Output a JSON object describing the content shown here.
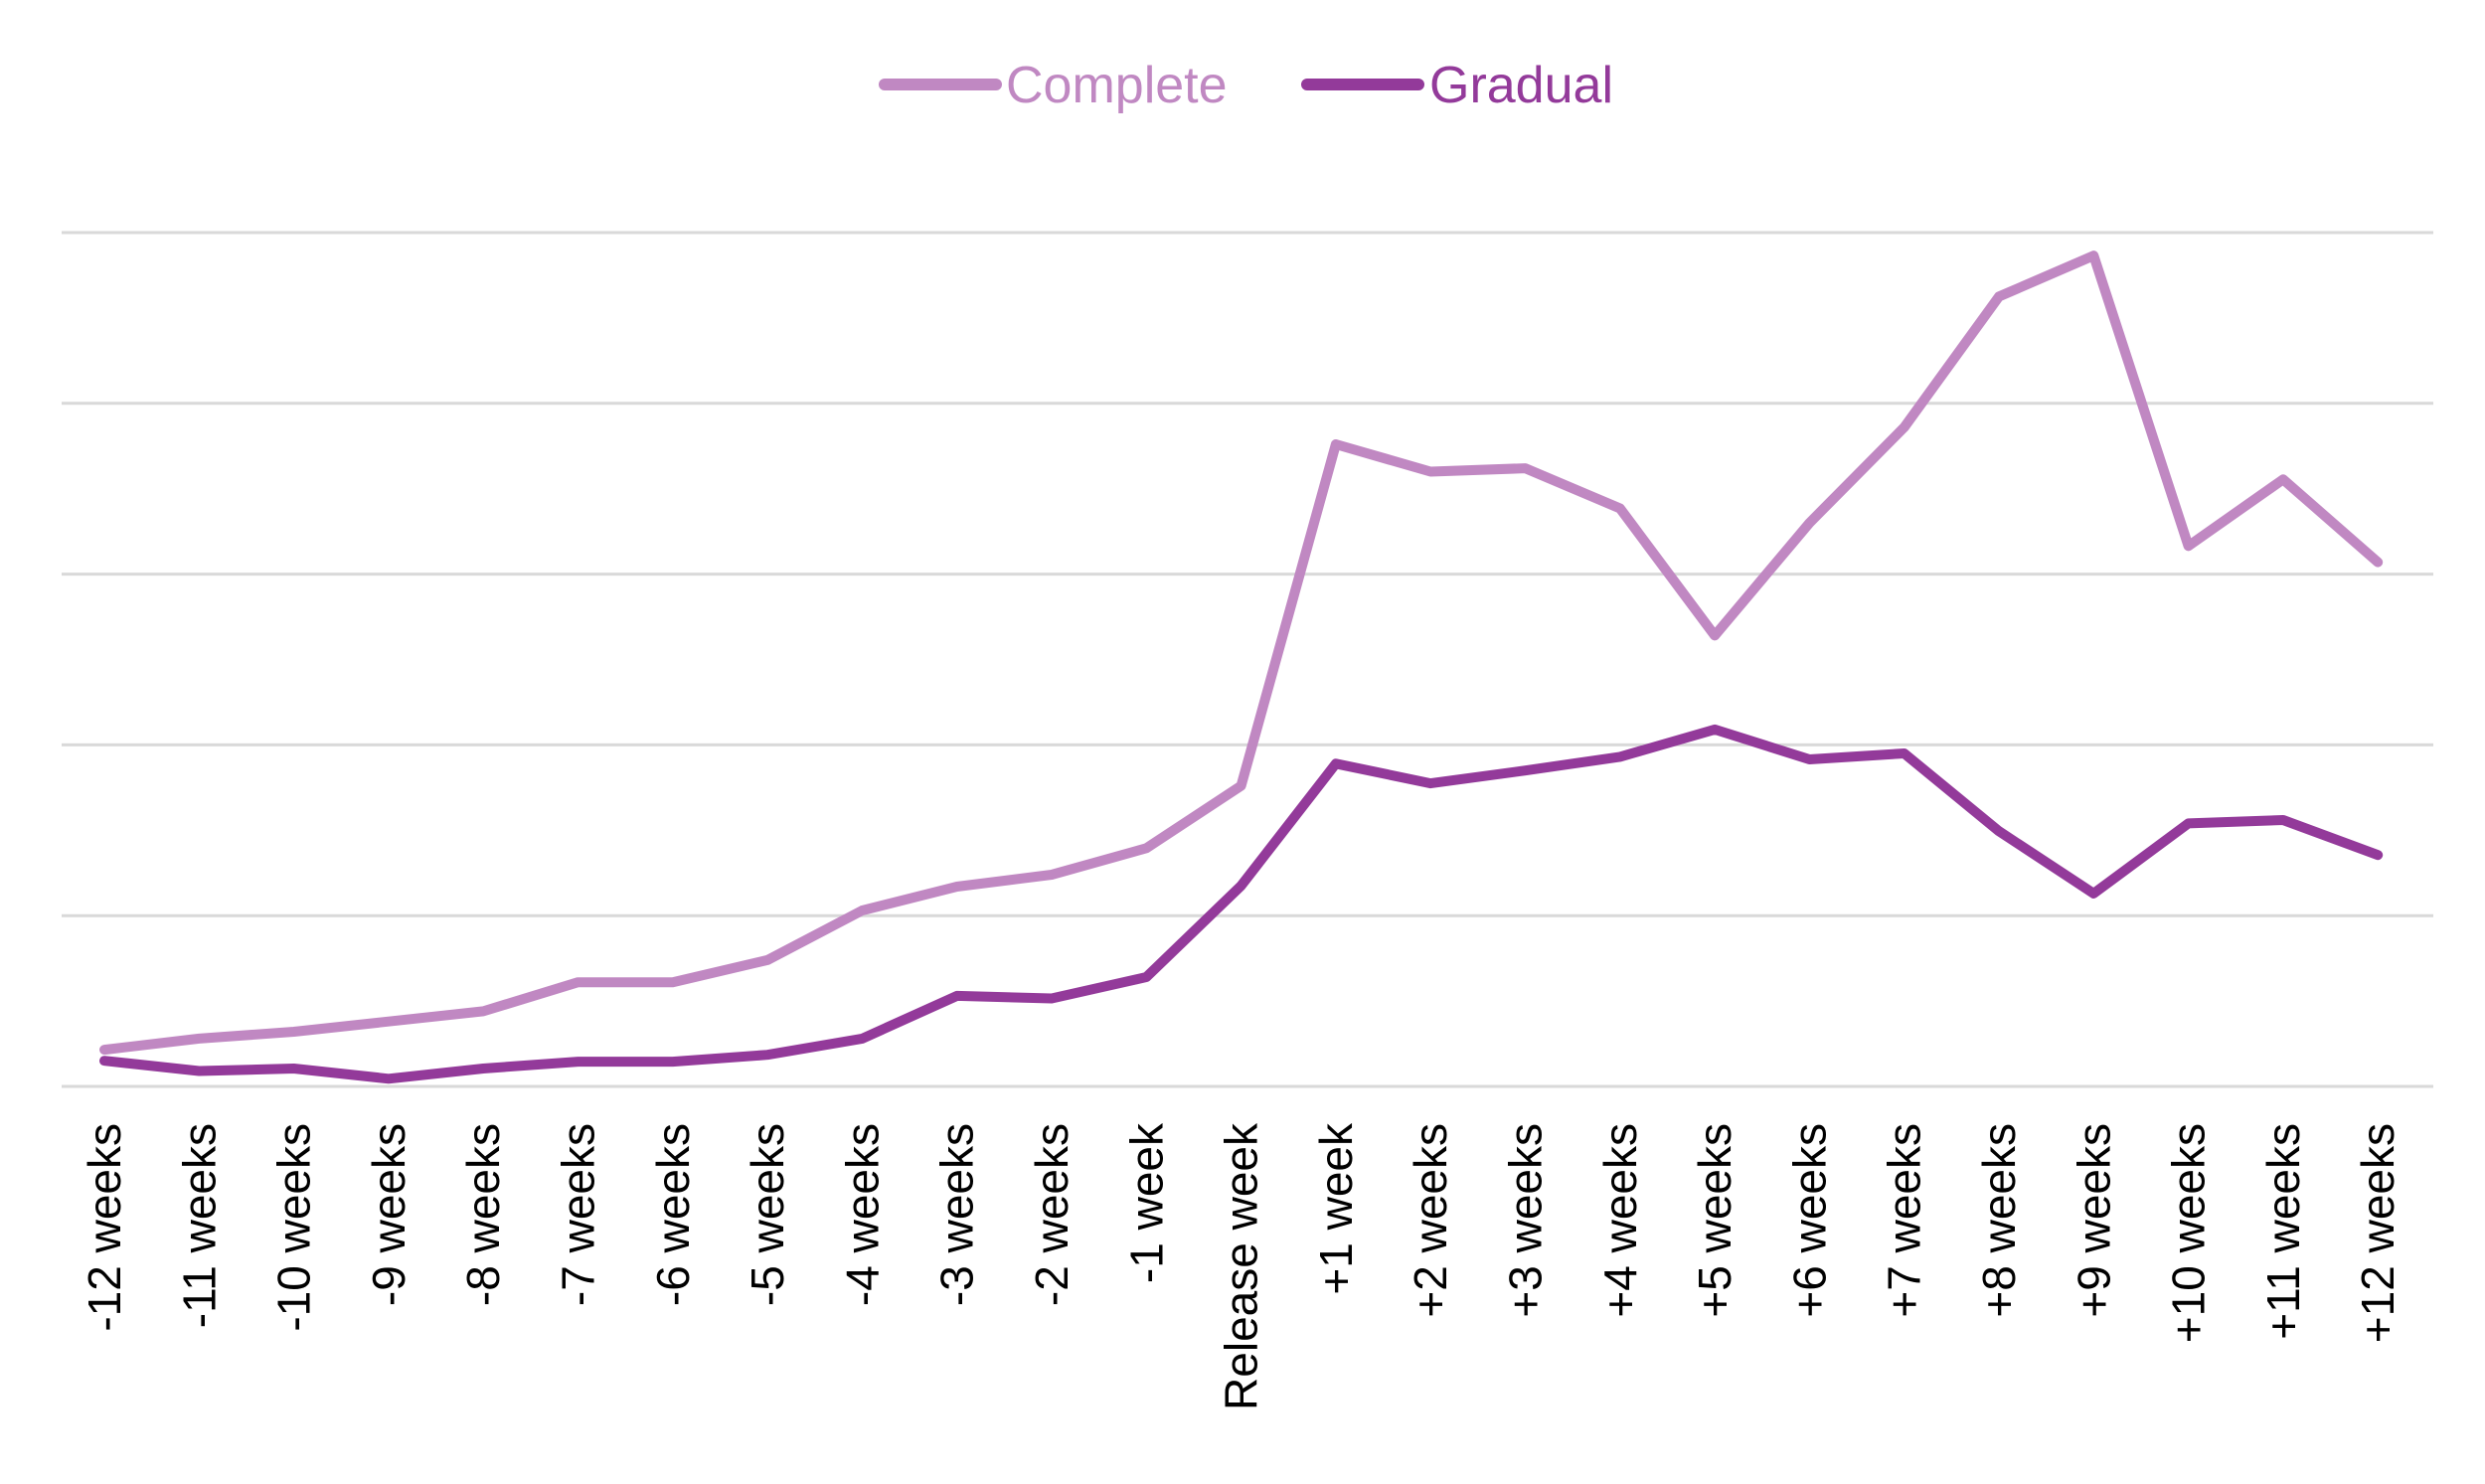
{
  "chart_data": {
    "type": "line",
    "title": "",
    "xlabel": "",
    "ylabel": "",
    "ylim": [
      0,
      100
    ],
    "y_axis_labels_shown": false,
    "grid": "horizontal",
    "gridline_count": 6,
    "legend_position": "top-center",
    "categories": [
      "-12 weeks",
      "-11 weeks",
      "-10 weeks",
      "-9 weeks",
      "-8 weeks",
      "-7 weeks",
      "-6 weeks",
      "-5 weeks",
      "-4 weeks",
      "-3 weeks",
      "-2 weeks",
      "-1 week",
      "Release week",
      "+1 week",
      "+2 weeks",
      "+3 weeks",
      "+4 weeks",
      "+5 weeks",
      "+6 weeks",
      "+7 weeks",
      "+8 weeks",
      "+9 weeks",
      "+10 weeks",
      "+11 weeks",
      "+12 weeks"
    ],
    "series": [
      {
        "name": "Complete",
        "color": "#c088c2",
        "values": [
          4.3,
          5.6,
          6.4,
          7.6,
          8.8,
          12.2,
          12.2,
          14.8,
          20.6,
          23.4,
          24.8,
          27.9,
          35.2,
          75.2,
          72.0,
          72.4,
          67.7,
          52.8,
          66.0,
          77.2,
          92.5,
          97.3,
          63.3,
          71.1,
          61.4
        ]
      },
      {
        "name": "Gradual",
        "color": "#933a9a",
        "values": [
          3.0,
          1.8,
          2.1,
          0.9,
          2.1,
          2.9,
          2.9,
          3.7,
          5.6,
          10.6,
          10.3,
          12.8,
          23.5,
          37.8,
          35.5,
          37.0,
          38.6,
          41.8,
          38.3,
          39.0,
          29.9,
          22.6,
          30.8,
          31.2,
          27.1
        ]
      }
    ]
  }
}
